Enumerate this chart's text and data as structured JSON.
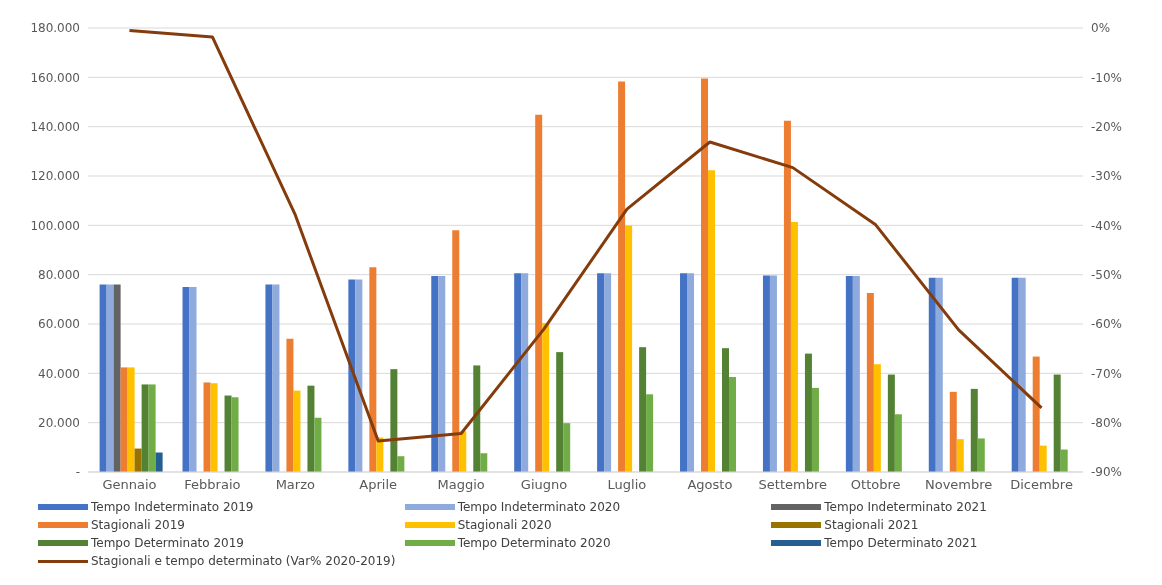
{
  "chart_data": {
    "type": "bar",
    "categories": [
      "Gennaio",
      "Febbraio",
      "Marzo",
      "Aprile",
      "Maggio",
      "Giugno",
      "Luglio",
      "Agosto",
      "Settembre",
      "Ottobre",
      "Novembre",
      "Dicembre"
    ],
    "series": [
      {
        "name": "Tempo Indeterminato 2019",
        "color": "#4472c4",
        "values": [
          76000,
          75000,
          76000,
          78000,
          79500,
          80600,
          80600,
          80600,
          79700,
          79500,
          78700,
          78700
        ]
      },
      {
        "name": "Tempo Indeterminato 2020",
        "color": "#8faadc",
        "values": [
          76000,
          75000,
          76000,
          78000,
          79500,
          80600,
          80600,
          80600,
          79700,
          79500,
          78700,
          78700
        ]
      },
      {
        "name": "Tempo Indeterminato 2021",
        "color": "#636363",
        "values": [
          76000,
          null,
          null,
          null,
          null,
          null,
          null,
          null,
          null,
          null,
          null,
          null
        ]
      },
      {
        "name": "Stagionali 2019",
        "color": "#ed7d31",
        "values": [
          42400,
          36300,
          54000,
          83000,
          98000,
          144800,
          158300,
          159500,
          142400,
          72600,
          32500,
          46800
        ]
      },
      {
        "name": "Stagionali 2020",
        "color": "#ffc000",
        "values": [
          42400,
          36000,
          33000,
          14000,
          16500,
          60400,
          99900,
          122300,
          101400,
          43700,
          13300,
          10700
        ]
      },
      {
        "name": "Stagionali 2021",
        "color": "#997300",
        "values": [
          9500,
          null,
          null,
          null,
          null,
          null,
          null,
          null,
          null,
          null,
          null,
          null
        ]
      },
      {
        "name": "Tempo Determinato 2019",
        "color": "#548235",
        "values": [
          35500,
          31000,
          35000,
          41700,
          43200,
          48600,
          50600,
          50200,
          48000,
          39500,
          33700,
          39500
        ]
      },
      {
        "name": "Tempo Determinato 2020",
        "color": "#70ad47",
        "values": [
          35500,
          30300,
          22000,
          6400,
          7600,
          19800,
          31500,
          38500,
          34100,
          23400,
          13600,
          9100
        ]
      },
      {
        "name": "Tempo Determinato 2021",
        "color": "#255e91",
        "values": [
          7900,
          null,
          null,
          null,
          null,
          null,
          null,
          null,
          null,
          null,
          null,
          null
        ]
      },
      {
        "name": "Stagionali e tempo determinato (Var% 2020-2019)",
        "type": "line",
        "axis": "y2",
        "color": "#843c0c",
        "values": [
          -0.5,
          -1.8,
          -37.9,
          -83.7,
          -82.2,
          -61,
          -36.7,
          -23.1,
          -28.3,
          -39.9,
          -61.2,
          -77
        ]
      }
    ],
    "ylim": [
      0,
      180000
    ],
    "yticks": [
      {
        "value": 0,
        "label": "-"
      },
      {
        "value": 20000,
        "label": "20.000"
      },
      {
        "value": 40000,
        "label": "40.000"
      },
      {
        "value": 60000,
        "label": "60.000"
      },
      {
        "value": 80000,
        "label": "80.000"
      },
      {
        "value": 100000,
        "label": "100.000"
      },
      {
        "value": 120000,
        "label": "120.000"
      },
      {
        "value": 140000,
        "label": "140.000"
      },
      {
        "value": 160000,
        "label": "160.000"
      },
      {
        "value": 180000,
        "label": "180.000"
      }
    ],
    "y2lim": [
      -90,
      0
    ],
    "y2ticks": [
      {
        "value": -90,
        "label": "-90%"
      },
      {
        "value": -80,
        "label": "-80%"
      },
      {
        "value": -70,
        "label": "-70%"
      },
      {
        "value": -60,
        "label": "-60%"
      },
      {
        "value": -50,
        "label": "-50%"
      },
      {
        "value": -40,
        "label": "-40%"
      },
      {
        "value": -30,
        "label": "-30%"
      },
      {
        "value": -20,
        "label": "-20%"
      },
      {
        "value": -10,
        "label": "-10%"
      },
      {
        "value": 0,
        "label": "0%"
      }
    ],
    "grid": "y",
    "legend": "bottom",
    "marker": "none",
    "line_style": "solid"
  }
}
